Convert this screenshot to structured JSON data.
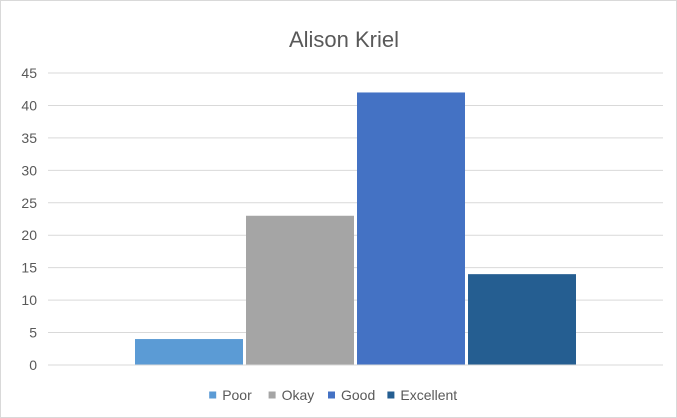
{
  "chart_data": {
    "type": "bar",
    "title": "Alison Kriel",
    "xlabel": "",
    "ylabel": "",
    "ylim": [
      0,
      45
    ],
    "y_ticks": [
      0,
      5,
      10,
      15,
      20,
      25,
      30,
      35,
      40,
      45
    ],
    "grid": true,
    "legend_position": "bottom",
    "categories": [
      ""
    ],
    "series": [
      {
        "name": "Poor",
        "values": [
          4
        ],
        "color": "#5b9bd5"
      },
      {
        "name": "Okay",
        "values": [
          23
        ],
        "color": "#a5a5a5"
      },
      {
        "name": "Good",
        "values": [
          42
        ],
        "color": "#4472c4"
      },
      {
        "name": "Excellent",
        "values": [
          14
        ],
        "color": "#255e91"
      }
    ]
  }
}
